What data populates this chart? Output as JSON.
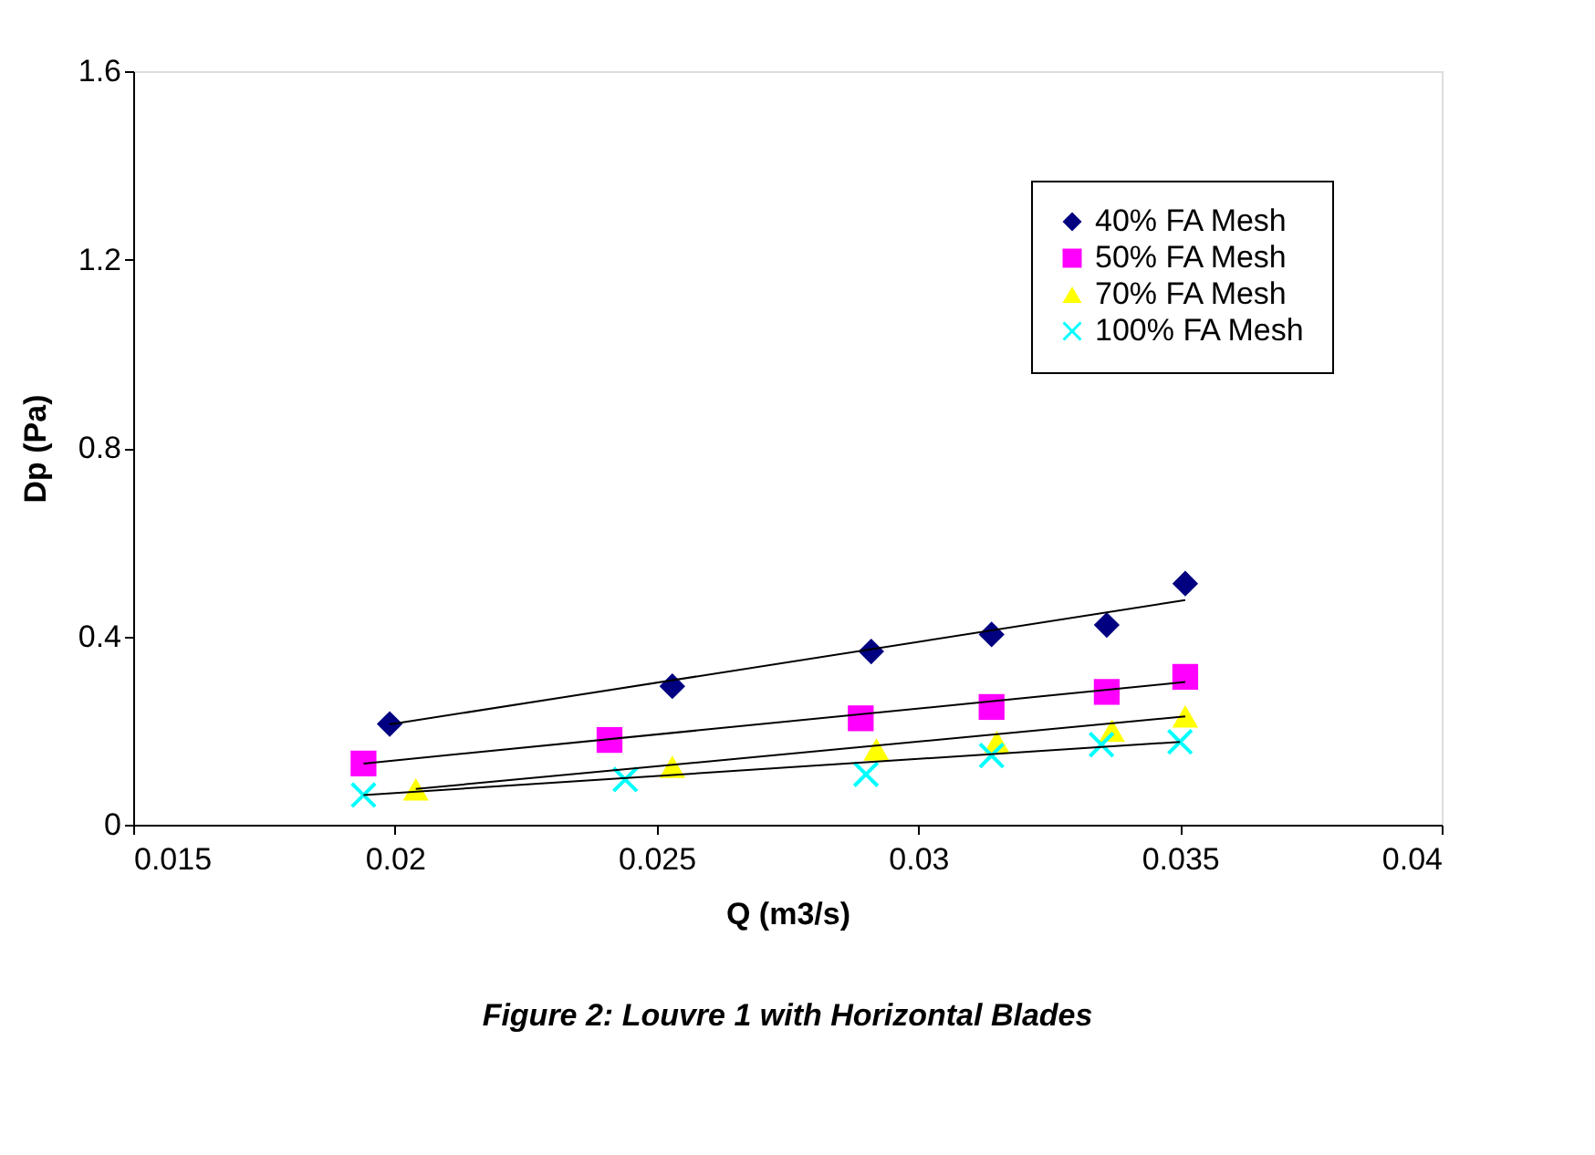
{
  "chart_data": {
    "type": "scatter",
    "title": "Figure 2: Louvre 1 with  Horizontal Blades",
    "xlabel": "Q (m3/s)",
    "ylabel": "Dp (Pa)",
    "xlim": [
      0.015,
      0.04
    ],
    "xticks": [
      0.015,
      0.02,
      0.025,
      0.03,
      0.035,
      0.04
    ],
    "ylim": [
      0,
      1.6
    ],
    "yticks": [
      0,
      0.4,
      0.8,
      1.2,
      1.6
    ],
    "grid": false,
    "legend": "top right",
    "series": [
      {
        "name": "40% FA Mesh",
        "color": "#000080",
        "marker": "diamond",
        "x": [
          0.0199,
          0.0253,
          0.0291,
          0.0314,
          0.0336,
          0.0351
        ],
        "values": [
          0.214,
          0.294,
          0.368,
          0.404,
          0.424,
          0.512
        ]
      },
      {
        "name": "50% FA Mesh",
        "color": "#ff00ff",
        "marker": "square",
        "x": [
          0.0194,
          0.0241,
          0.0289,
          0.0314,
          0.0336,
          0.0351
        ],
        "values": [
          0.13,
          0.18,
          0.226,
          0.25,
          0.282,
          0.314
        ]
      },
      {
        "name": "70% FA Mesh",
        "color": "#ffff00",
        "marker": "triangle",
        "x": [
          0.0204,
          0.0253,
          0.0292,
          0.0315,
          0.0337,
          0.0351
        ],
        "values": [
          0.075,
          0.123,
          0.16,
          0.176,
          0.2,
          0.23
        ]
      },
      {
        "name": "100% FA Mesh",
        "color": "#00ffff",
        "marker": "cross",
        "x": [
          0.0194,
          0.0244,
          0.029,
          0.0314,
          0.0335,
          0.035
        ],
        "values": [
          0.063,
          0.096,
          0.107,
          0.147,
          0.17,
          0.176
        ]
      },
      {
        "type": "line",
        "color": "#000000",
        "x": [
          0.0199,
          0.0351
        ],
        "values": [
          0.213,
          0.477
        ]
      },
      {
        "type": "line",
        "color": "#000000",
        "x": [
          0.0194,
          0.0351
        ],
        "values": [
          0.13,
          0.303
        ]
      },
      {
        "type": "line",
        "color": "#000000",
        "x": [
          0.0204,
          0.0351
        ],
        "values": [
          0.076,
          0.23
        ]
      },
      {
        "type": "line",
        "color": "#000000",
        "x": [
          0.0194,
          0.035
        ],
        "values": [
          0.063,
          0.176
        ]
      }
    ]
  }
}
